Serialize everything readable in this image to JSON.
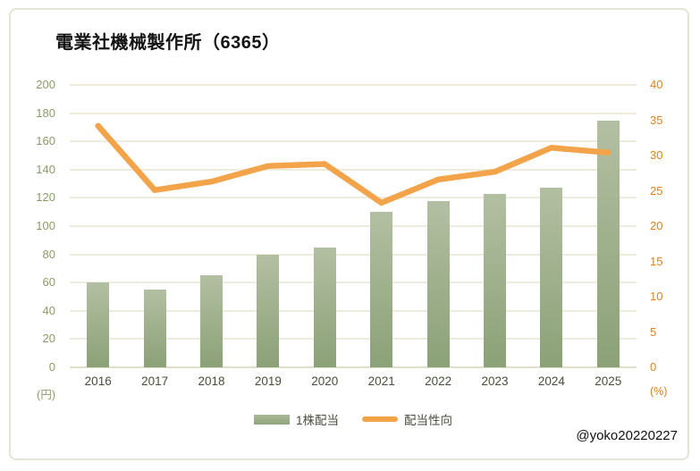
{
  "title": "電業社機械製作所（6365）",
  "watermark": "@yoko20220227",
  "axes": {
    "left_unit": "(円)",
    "right_unit": "(%)",
    "left_ticks": [
      200,
      180,
      160,
      140,
      120,
      100,
      80,
      60,
      40,
      20,
      0
    ],
    "right_ticks": [
      40,
      35,
      30,
      25,
      20,
      15,
      10,
      5,
      0
    ]
  },
  "legend": {
    "bar_label": "1株配当",
    "line_label": "配当性向"
  },
  "colors": {
    "bar_top": "#b3bfa2",
    "bar_bottom": "#8ba177",
    "line": "#f3a34a",
    "left_axis_text": "#8a9c68",
    "right_axis_text": "#e2831e",
    "x_axis_text": "#474f38",
    "gridline": "#edecdd",
    "frame_border": "#e4e4d2"
  },
  "chart_data": {
    "type": "bar",
    "subtype": "combo-bar-line",
    "title": "電業社機械製作所（6365）",
    "categories": [
      "2016",
      "2017",
      "2018",
      "2019",
      "2020",
      "2021",
      "2022",
      "2023",
      "2024",
      "2025"
    ],
    "series": [
      {
        "name": "1株配当",
        "type": "bar",
        "axis": "left",
        "unit": "円",
        "values": [
          60,
          55,
          65,
          80,
          85,
          110,
          117.5,
          122.5,
          127.5,
          175
        ]
      },
      {
        "name": "配当性向",
        "type": "line",
        "axis": "right",
        "unit": "%",
        "values": [
          34.2,
          25.1,
          26.3,
          28.5,
          28.8,
          23.3,
          26.6,
          27.7,
          31.1,
          30.4
        ]
      }
    ],
    "xlabel": "",
    "ylabel_left": "(円)",
    "ylabel_right": "(%)",
    "left_ylim": [
      0,
      200
    ],
    "right_ylim": [
      0,
      40
    ],
    "grid": true,
    "legend_position": "bottom"
  }
}
